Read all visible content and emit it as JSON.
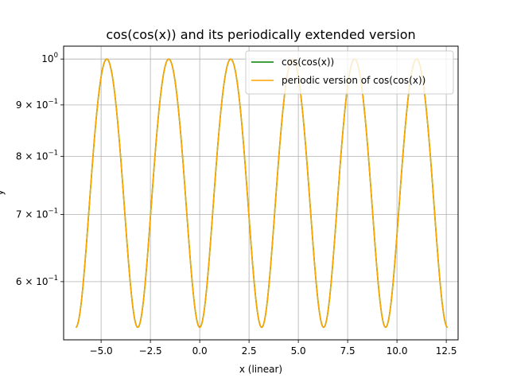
{
  "chart_data": {
    "type": "line",
    "title": "cos(cos(x)) and its periodically extended version",
    "xlabel": "x (linear)",
    "ylabel": "y",
    "xlim": [
      -6.9,
      13.1
    ],
    "ylim": [
      0.525,
      1.03
    ],
    "yscale": "log",
    "grid": true,
    "legend_position": "top-right",
    "x_ticks": [
      {
        "value": -5.0,
        "label": "−5.0"
      },
      {
        "value": -2.5,
        "label": "−2.5"
      },
      {
        "value": 0.0,
        "label": "0.0"
      },
      {
        "value": 2.5,
        "label": "2.5"
      },
      {
        "value": 5.0,
        "label": "5.0"
      },
      {
        "value": 7.5,
        "label": "7.5"
      },
      {
        "value": 10.0,
        "label": "10.0"
      },
      {
        "value": 12.5,
        "label": "12.5"
      }
    ],
    "y_ticks": [
      {
        "value": 1.0,
        "base": "10",
        "exp": "0"
      },
      {
        "value": 0.9,
        "base": "9 × 10",
        "exp": "−1"
      },
      {
        "value": 0.8,
        "base": "8 × 10",
        "exp": "−1"
      },
      {
        "value": 0.7,
        "base": "7 × 10",
        "exp": "−1"
      },
      {
        "value": 0.6,
        "base": "6 × 10",
        "exp": "−1"
      }
    ],
    "x_range": [
      -6.283,
      12.566
    ],
    "series": [
      {
        "name": "cos(cos(x))",
        "color": "#008000",
        "function": "cos(cos(x))"
      },
      {
        "name": "periodic version of cos(cos(x))",
        "color": "#ffa500",
        "function": "cos(cos(x))"
      }
    ]
  }
}
